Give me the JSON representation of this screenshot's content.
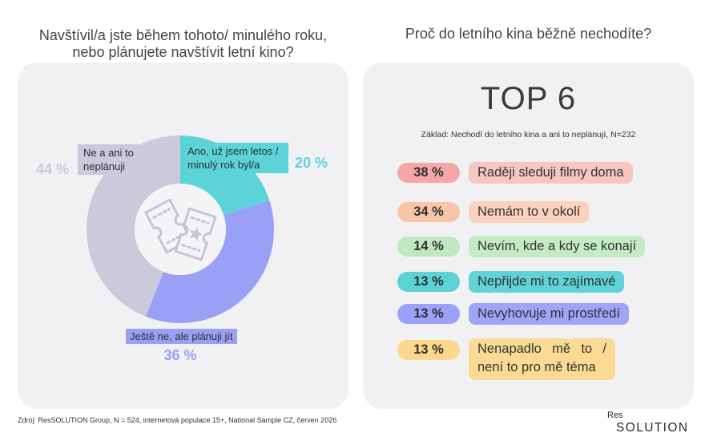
{
  "chart_data": {
    "type": "pie",
    "donut": true,
    "title_lines": [
      "Navštívil/a jste během tohoto/ minulého roku,",
      "nebo plánujete navštívit letní kino?"
    ],
    "slices": [
      {
        "label_lines": [
          "Ano, už jsem letos /",
          "minulý rok byl/a"
        ],
        "value": 20,
        "value_label": "20 %",
        "color": "#5cd3d8"
      },
      {
        "label_lines": [
          "Ještě ne, ale plánuji jít"
        ],
        "value": 36,
        "value_label": "36 %",
        "color": "#9aa0f6"
      },
      {
        "label_lines": [
          "Ne a ani to",
          "neplánuji"
        ],
        "value": 44,
        "value_label": "44 %",
        "color": "#cacada"
      }
    ],
    "center_icon": "cinema-tickets-icon"
  },
  "top6": {
    "question": "Proč do letního kina běžně nechodíte?",
    "heading": "TOP 6",
    "base_note": "Základ: Nechodí do letního kina a ani to neplánují, N=232",
    "rows": [
      {
        "percent": "38 %",
        "label": "Raději sleduji filmy doma",
        "percent_color": "#f6a6a6",
        "label_color": "#f8c6c1"
      },
      {
        "percent": "34 %",
        "label": "Nemám to v okolí",
        "percent_color": "#f9c5a9",
        "label_color": "#fad2bd"
      },
      {
        "percent": "14 %",
        "label": "Nevím, kde a kdy se konají",
        "percent_color": "#bfe8c0",
        "label_color": "#c5ebc5"
      },
      {
        "percent": "13 %",
        "label": "Nepřijde mi to zajímavé",
        "percent_color": "#5dd2d6",
        "label_color": "#5fd3d7"
      },
      {
        "percent": "13 %",
        "label": "Nevyhovuje mi prostředí",
        "percent_color": "#9ba1f6",
        "label_color": "#9ea4f6"
      },
      {
        "percent": "13 %",
        "label_lines": [
          "Nenapadlo mě to /",
          "není to pro mě téma"
        ],
        "percent_color": "#fbd88b",
        "label_color": "#fbdb94"
      }
    ]
  },
  "footer": {
    "source": "Zdroj: ResSOLUTION Group, N = 524, internetová populace 15+, National Sample CZ, červen 2026"
  },
  "logo": {
    "top": "Res",
    "bottom": "SOLUTION"
  }
}
